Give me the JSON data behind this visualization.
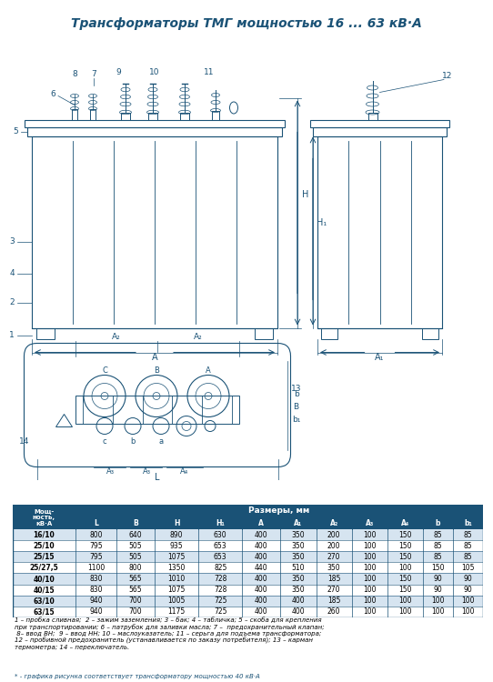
{
  "title": "Трансформаторы ТМГ мощностью 16 ... 63 кВ·А",
  "title_color": "#1a5276",
  "table_header_bg": "#1a5276",
  "table_header_fg": "#ffffff",
  "table_row_bg1": "#d6e4f0",
  "table_row_bg2": "#ffffff",
  "table_border": "#1a5276",
  "col_headers": [
    "Мощ-\nность,\nкВ·А",
    "L",
    "B",
    "H",
    "H₁",
    "A",
    "A₁",
    "A₂",
    "A₃",
    "A₄",
    "b",
    "b₁"
  ],
  "rows": [
    [
      "16/10",
      800,
      640,
      890,
      630,
      400,
      350,
      200,
      100,
      150,
      85,
      85
    ],
    [
      "25/10",
      795,
      505,
      935,
      653,
      400,
      350,
      200,
      100,
      150,
      85,
      85
    ],
    [
      "25/15",
      795,
      505,
      1075,
      653,
      400,
      350,
      270,
      100,
      150,
      85,
      85
    ],
    [
      "25/27,5",
      1100,
      800,
      1350,
      825,
      440,
      510,
      350,
      100,
      100,
      150,
      105
    ],
    [
      "40/10",
      830,
      565,
      1010,
      728,
      400,
      350,
      185,
      100,
      150,
      90,
      90
    ],
    [
      "40/15",
      830,
      565,
      1075,
      728,
      400,
      350,
      270,
      100,
      150,
      90,
      90
    ],
    [
      "63/10",
      940,
      700,
      1005,
      725,
      400,
      400,
      185,
      100,
      100,
      100,
      100
    ],
    [
      "63/15",
      940,
      700,
      1175,
      725,
      400,
      400,
      260,
      100,
      100,
      100,
      100
    ]
  ],
  "sizes_header": "Размеры, мм",
  "footnote": "1 – пробка сливная;  2 – зажим заземления; 3 – бак; 4 – табличка; 5 – скоба для крепления\nпри транспортировании; 6 – патрубок для заливки масла; 7 –  предохранительный клапан;\n 8– ввод ВН;  9 – ввод НН; 10 – маслоуказатель; 11 – серьга для подъема трансформатора;\n12 – пробивной предохранитель (устанавливается по заказу потребителя); 13 – карман\nтермометра; 14 – переключатель.",
  "footnote2": "* - графика рисунка соответствует трансформатору мощностью 40 кВ·А",
  "line_color": "#1a5276",
  "drawing_bg": "#ffffff",
  "label_color": "#1a5276"
}
